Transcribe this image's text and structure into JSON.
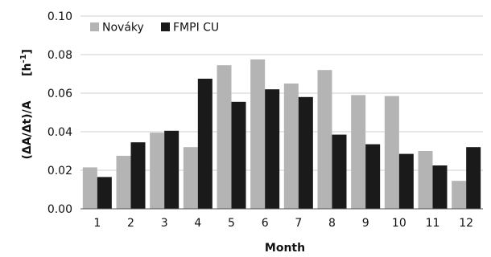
{
  "chart_data": {
    "type": "bar",
    "title": "",
    "xlabel": "Month",
    "ylabel": "(ΔA/Δt)/A",
    "ylabel_unit": "[h-1]",
    "ylim": [
      0,
      0.1
    ],
    "yticks": [
      "0.00",
      "0.02",
      "0.04",
      "0.06",
      "0.08",
      "0.10"
    ],
    "grid": true,
    "legend_position": "top-left",
    "categories": [
      "1",
      "2",
      "3",
      "4",
      "5",
      "6",
      "7",
      "8",
      "9",
      "10",
      "11",
      "12"
    ],
    "series": [
      {
        "name": "Nováky",
        "color": "#b4b4b4",
        "values": [
          0.0215,
          0.0275,
          0.0395,
          0.032,
          0.0745,
          0.0775,
          0.065,
          0.072,
          0.059,
          0.0585,
          0.03,
          0.0145
        ]
      },
      {
        "name": "FMPI CU",
        "color": "#1a1a1a",
        "values": [
          0.0165,
          0.0345,
          0.0405,
          0.0675,
          0.0555,
          0.062,
          0.058,
          0.0385,
          0.0335,
          0.0285,
          0.0225,
          0.032
        ]
      }
    ]
  }
}
